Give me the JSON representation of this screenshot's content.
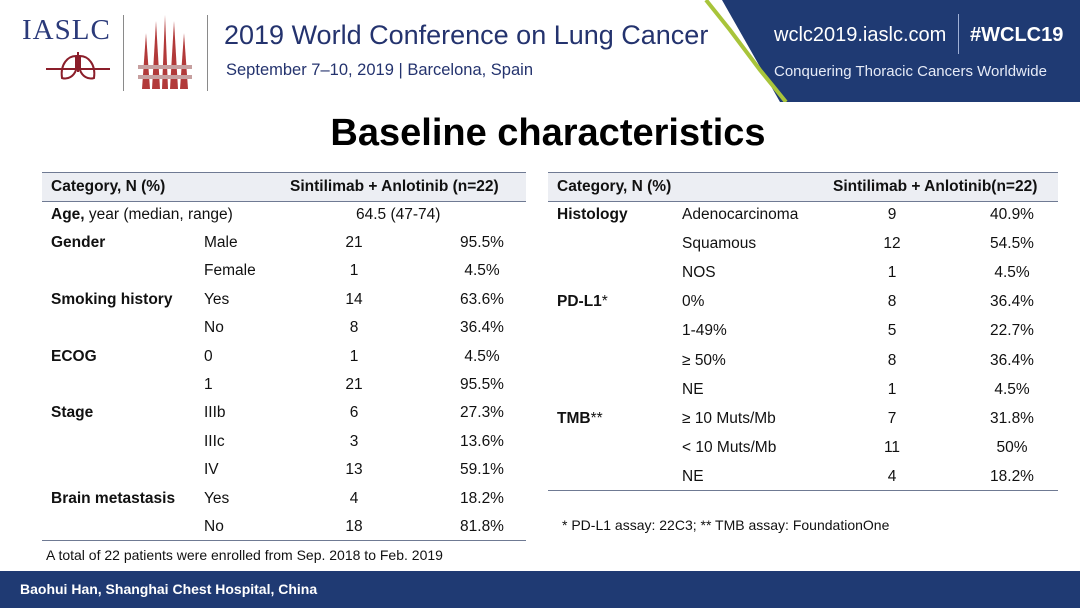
{
  "header": {
    "org_logo": "IASLC",
    "conference_title": "2019 World Conference on Lung Cancer",
    "conference_subtitle": "September 7–10, 2019 | Barcelona, Spain",
    "url": "wclc2019.iaslc.com",
    "hashtag": "#WCLC19",
    "tagline": "Conquering Thoracic Cancers Worldwide",
    "panel_color": "#1f3a73",
    "accent_color": "#a8c43a"
  },
  "title": "Baseline characteristics",
  "left_table": {
    "headers": [
      "Category, N (%)",
      "Sintilimab + Anlotinib (n=22)"
    ],
    "age": {
      "label_bold": "Age,",
      "label_rest": " year (median, range)",
      "value": "64.5 (47-74)"
    },
    "rows": [
      {
        "category": "Gender",
        "sub": "Male",
        "n": "21",
        "pct": "95.5%"
      },
      {
        "category": "",
        "sub": "Female",
        "n": "1",
        "pct": "4.5%"
      },
      {
        "category": "Smoking history",
        "sub": "Yes",
        "n": "14",
        "pct": "63.6%"
      },
      {
        "category": "",
        "sub": "No",
        "n": "8",
        "pct": "36.4%"
      },
      {
        "category": "ECOG",
        "sub": "0",
        "n": "1",
        "pct": "4.5%"
      },
      {
        "category": "",
        "sub": "1",
        "n": "21",
        "pct": "95.5%"
      },
      {
        "category": "Stage",
        "sub": "IIIb",
        "n": "6",
        "pct": "27.3%"
      },
      {
        "category": "",
        "sub": "IIIc",
        "n": "3",
        "pct": "13.6%"
      },
      {
        "category": "",
        "sub": "IV",
        "n": "13",
        "pct": "59.1%"
      },
      {
        "category": "Brain metastasis",
        "sub": "Yes",
        "n": "4",
        "pct": "18.2%"
      },
      {
        "category": "",
        "sub": "No",
        "n": "18",
        "pct": "81.8%"
      }
    ],
    "note": "A total of 22 patients were enrolled from Sep. 2018 to Feb. 2019"
  },
  "right_table": {
    "headers": [
      "Category, N (%)",
      "Sintilimab + Anlotinib(n=22)"
    ],
    "rows": [
      {
        "category": "Histology",
        "cat_suffix": "",
        "sub": "Adenocarcinoma",
        "n": "9",
        "pct": "40.9%"
      },
      {
        "category": "",
        "cat_suffix": "",
        "sub": "Squamous",
        "n": "12",
        "pct": "54.5%"
      },
      {
        "category": "",
        "cat_suffix": "",
        "sub": "NOS",
        "n": "1",
        "pct": "4.5%"
      },
      {
        "category": "PD-L1",
        "cat_suffix": "*",
        "sub": "0%",
        "n": "8",
        "pct": "36.4%"
      },
      {
        "category": "",
        "cat_suffix": "",
        "sub": "1-49%",
        "n": "5",
        "pct": "22.7%"
      },
      {
        "category": "",
        "cat_suffix": "",
        "sub": "≥ 50%",
        "n": "8",
        "pct": "36.4%"
      },
      {
        "category": "",
        "cat_suffix": "",
        "sub": "NE",
        "n": "1",
        "pct": "4.5%"
      },
      {
        "category": "TMB",
        "cat_suffix": "**",
        "sub": "≥ 10 Muts/Mb",
        "n": "7",
        "pct": "31.8%"
      },
      {
        "category": "",
        "cat_suffix": "",
        "sub": "< 10 Muts/Mb",
        "n": "11",
        "pct": "50%"
      },
      {
        "category": "",
        "cat_suffix": "",
        "sub": "NE",
        "n": "4",
        "pct": "18.2%"
      }
    ],
    "note": "* PD-L1 assay: 22C3; ** TMB assay: FoundationOne"
  },
  "footer": {
    "text": "Baohui Han, Shanghai Chest Hospital, China"
  }
}
